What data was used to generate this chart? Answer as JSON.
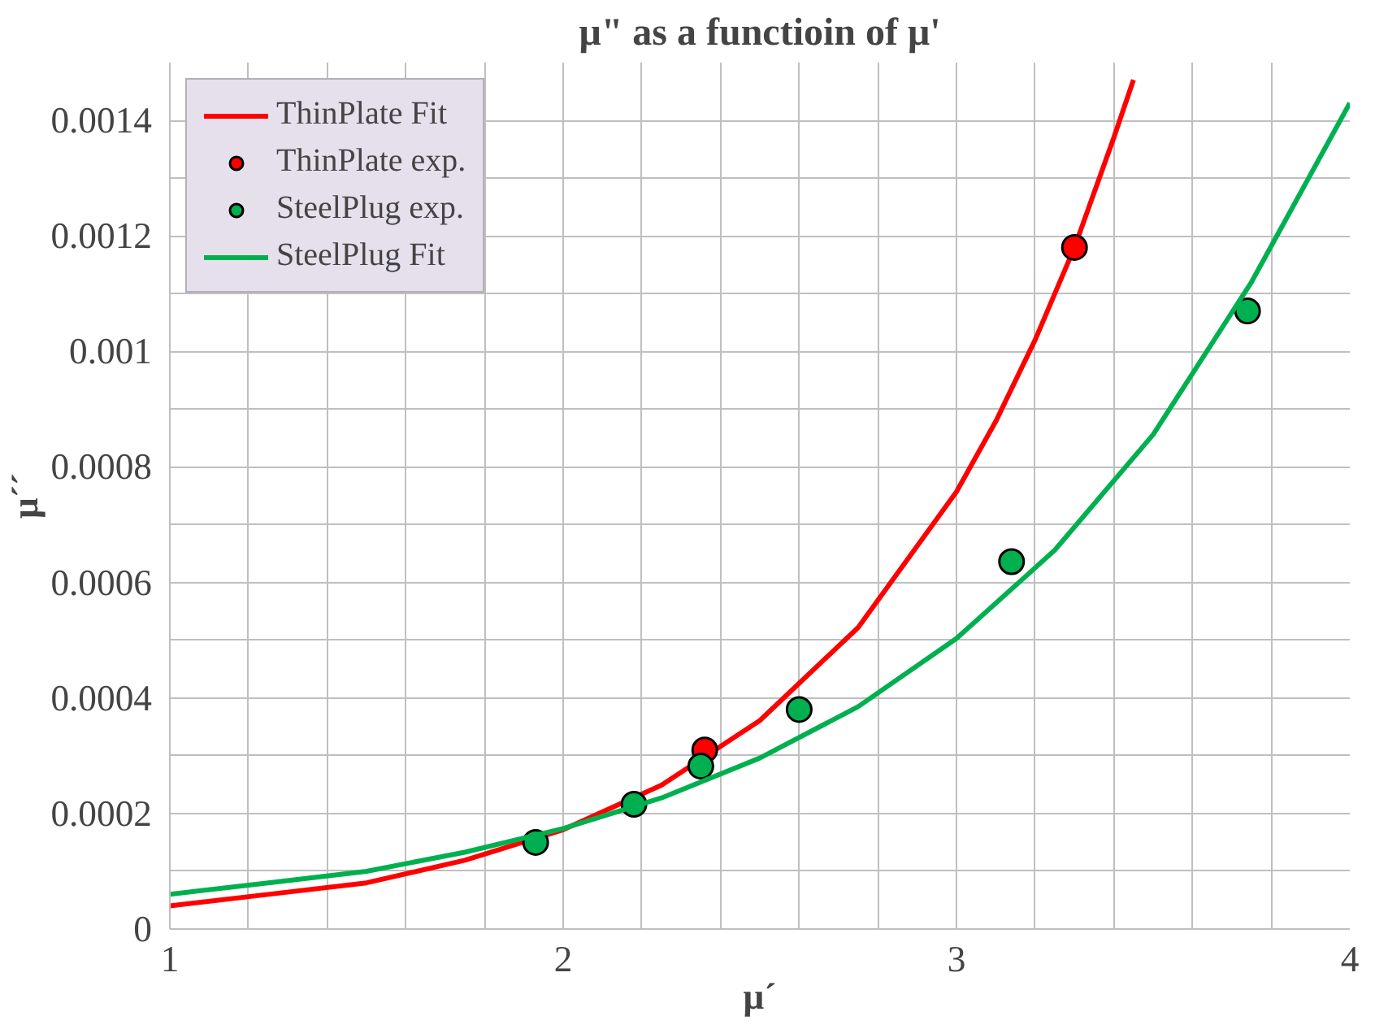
{
  "chart_data": {
    "type": "line",
    "title": "μ\" as a functioin of μ'",
    "xlabel": "μ´",
    "ylabel": "μ´´",
    "xlim": [
      1,
      4
    ],
    "ylim": [
      0,
      0.0015
    ],
    "xticks": [
      1,
      {
        "value": 1.2,
        "label": null
      },
      {
        "value": 1.4,
        "label": null
      },
      {
        "value": 1.6,
        "label": null
      },
      {
        "value": 1.8,
        "label": null
      },
      2,
      {
        "value": 2.2,
        "label": null
      },
      {
        "value": 2.4,
        "label": null
      },
      {
        "value": 2.6,
        "label": null
      },
      {
        "value": 2.8,
        "label": null
      },
      3,
      {
        "value": 3.2,
        "label": null
      },
      {
        "value": 3.4,
        "label": null
      },
      {
        "value": 3.6,
        "label": null
      },
      {
        "value": 3.8,
        "label": null
      },
      4
    ],
    "yticks": [
      0,
      {
        "value": 0.0001,
        "label": null
      },
      {
        "value": 0.0002,
        "label": "0.0002"
      },
      {
        "value": 0.0003,
        "label": null
      },
      {
        "value": 0.0004,
        "label": "0.0004"
      },
      {
        "value": 0.0005,
        "label": null
      },
      {
        "value": 0.0006,
        "label": "0.0006"
      },
      {
        "value": 0.0007,
        "label": null
      },
      {
        "value": 0.0008,
        "label": "0.0008"
      },
      {
        "value": 0.0009,
        "label": null
      },
      {
        "value": 0.001,
        "label": "0.001"
      },
      {
        "value": 0.0011,
        "label": null
      },
      {
        "value": 0.0012,
        "label": "0.0012"
      },
      {
        "value": 0.0013,
        "label": null
      },
      {
        "value": 0.0014,
        "label": "0.0014"
      }
    ],
    "grid": true,
    "legend": "top left",
    "series": [
      {
        "name": "ThinPlate Fit",
        "color": "#ff0000",
        "line_style": "solid",
        "marker": "none",
        "x": [
          1,
          1.25,
          1.5,
          1.75,
          2,
          2.25,
          2.5,
          2.75,
          3,
          3.1,
          3.2,
          3.3,
          3.4,
          3.45
        ],
        "values": [
          4e-05,
          6e-05,
          8e-05,
          0.000119,
          0.000172,
          0.000249,
          0.000361,
          0.000522,
          0.000757,
          0.000879,
          0.00102,
          0.00118,
          0.00137,
          0.00147
        ]
      },
      {
        "name": "ThinPlate exp.",
        "type": "scatter",
        "color": "#ff0000",
        "marker": "circle",
        "x": [
          2.36,
          3.3
        ],
        "values": [
          0.00031,
          0.00118
        ]
      },
      {
        "name": "SteelPlug exp.",
        "type": "scatter",
        "color": "#00b050",
        "marker": "circle",
        "x": [
          1.93,
          2.18,
          2.35,
          2.6,
          3.14,
          3.74
        ],
        "values": [
          0.00015,
          0.000216,
          0.000282,
          0.00038,
          0.000636,
          0.00107
        ]
      },
      {
        "name": "SteelPlug Fit",
        "color": "#00b050",
        "line_style": "solid",
        "marker": "none",
        "x": [
          1,
          1.25,
          1.5,
          1.75,
          2,
          2.25,
          2.5,
          2.75,
          3,
          3.25,
          3.5,
          3.75,
          4
        ],
        "values": [
          6e-05,
          8e-05,
          0.0001,
          0.000133,
          0.000174,
          0.000227,
          0.000296,
          0.000385,
          0.000503,
          0.000656,
          0.000856,
          0.00112,
          0.00143
        ]
      }
    ]
  }
}
